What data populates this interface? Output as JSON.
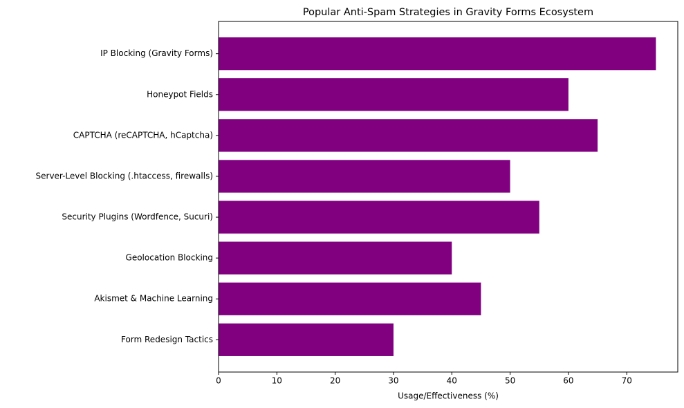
{
  "chart_data": {
    "type": "bar",
    "orientation": "horizontal",
    "title": "Popular Anti-Spam Strategies in Gravity Forms Ecosystem",
    "xlabel": "Usage/Effectiveness (%)",
    "categories": [
      "IP Blocking (Gravity Forms)",
      "Honeypot Fields",
      "CAPTCHA (reCAPTCHA, hCaptcha)",
      "Server-Level Blocking (.htaccess, firewalls)",
      "Security Plugins (Wordfence, Sucuri)",
      "Geolocation Blocking",
      "Akismet & Machine Learning",
      "Form Redesign Tactics"
    ],
    "values": [
      75,
      60,
      65,
      50,
      55,
      40,
      45,
      30
    ],
    "color": "#800080",
    "xlim": [
      0,
      78.75
    ],
    "xticks": [
      0,
      10,
      20,
      30,
      40,
      50,
      60,
      70
    ],
    "grid": false
  }
}
